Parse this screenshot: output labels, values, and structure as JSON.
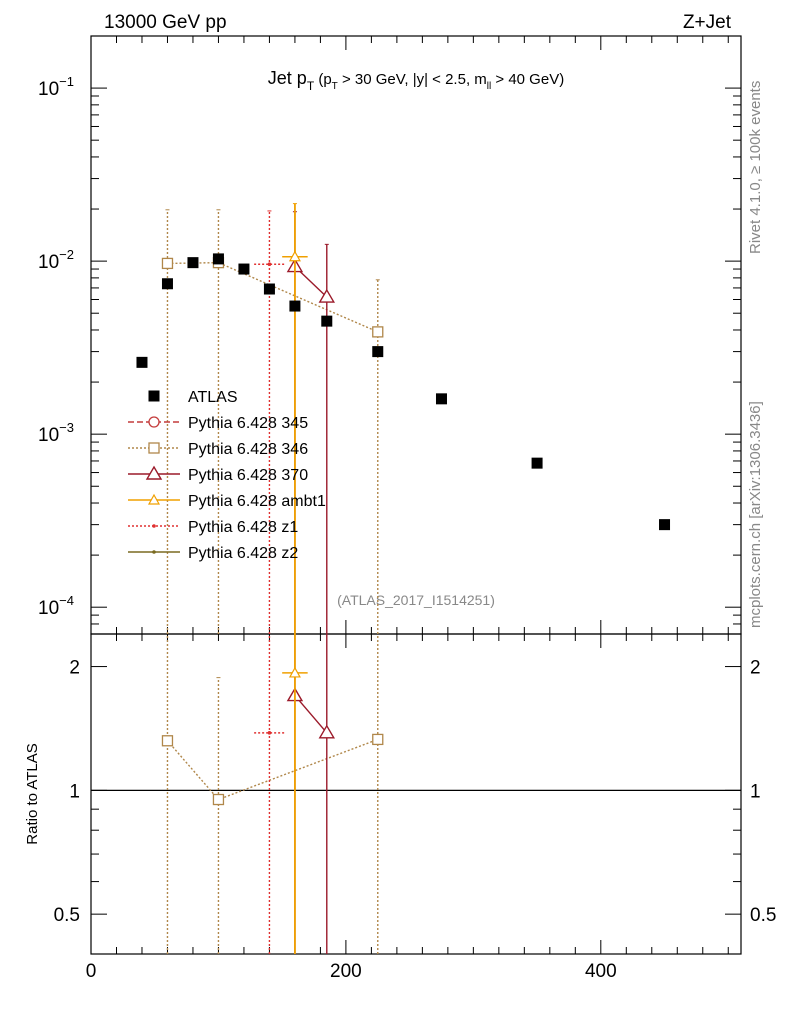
{
  "header": {
    "left": "13000 GeV pp",
    "right": "Z+Jet"
  },
  "title": {
    "main": "Jet p",
    "main_sub": "T",
    "cond_open": " (p",
    "cond_sub": "T",
    "cond_mid": " > 30 GeV, |y| < 2.5, m",
    "cond_sub2": "ll",
    "cond_end": " > 40 GeV)"
  },
  "side_labels": {
    "rivet": "Rivet 4.1.0, ≥ 100k events",
    "mcplots": "mcplots.cern.ch [arXiv:1306.3436]"
  },
  "watermark": "(ATLAS_2017_I1514251)",
  "ratio_ylabel": "Ratio to ATLAS",
  "colors": {
    "data": "#000000",
    "p345": "#c43c3c",
    "p346": "#b0874a",
    "p370": "#9b1a2a",
    "ambt1": "#f0a000",
    "z1": "#e03030",
    "z2": "#7a6a20"
  },
  "chart_data": {
    "type": "scatter",
    "main": {
      "yscale": "log",
      "ylim": [
        7e-05,
        0.2
      ],
      "xlim": [
        0,
        510
      ],
      "yticks_major": [
        {
          "value": 0.1,
          "base": "10",
          "exp": "−1"
        },
        {
          "value": 0.01,
          "base": "10",
          "exp": "−2"
        },
        {
          "value": 0.001,
          "base": "10",
          "exp": "−3"
        },
        {
          "value": 0.0001,
          "base": "10",
          "exp": "−4"
        }
      ]
    },
    "ratio": {
      "yscale": "log",
      "ylim": [
        0.4,
        2.4
      ],
      "ytick_labels": [
        {
          "value": 0.5,
          "label": "0.5"
        },
        {
          "value": 1,
          "label": "1"
        },
        {
          "value": 2,
          "label": "2"
        }
      ],
      "reference": 1
    },
    "xticks": [
      {
        "value": 0,
        "label": "0"
      },
      {
        "value": 200,
        "label": "200"
      },
      {
        "value": 400,
        "label": "400"
      }
    ],
    "legend": [
      {
        "key": "data",
        "label": "ATLAS",
        "marker": "square-filled",
        "line": "none"
      },
      {
        "key": "p345",
        "label": "Pythia 6.428 345",
        "marker": "circle-open",
        "line": "dashed"
      },
      {
        "key": "p346",
        "label": "Pythia 6.428 346",
        "marker": "square-open",
        "line": "dotted"
      },
      {
        "key": "p370",
        "label": "Pythia 6.428 370",
        "marker": "triangle-open",
        "line": "solid"
      },
      {
        "key": "ambt1",
        "label": "Pythia 6.428 ambt1",
        "marker": "triangle-small",
        "line": "solid"
      },
      {
        "key": "z1",
        "label": "Pythia 6.428 z1",
        "marker": "dot",
        "line": "dotted"
      },
      {
        "key": "z2",
        "label": "Pythia 6.428 z2",
        "marker": "dot",
        "line": "solid"
      }
    ],
    "series": [
      {
        "key": "data",
        "name": "ATLAS",
        "points": [
          {
            "x": 40,
            "y": 0.0026
          },
          {
            "x": 60,
            "y": 0.0074
          },
          {
            "x": 80,
            "y": 0.0098
          },
          {
            "x": 100,
            "y": 0.0103
          },
          {
            "x": 120,
            "y": 0.009
          },
          {
            "x": 140,
            "y": 0.0069
          },
          {
            "x": 160,
            "y": 0.0055
          },
          {
            "x": 185,
            "y": 0.0045
          },
          {
            "x": 225,
            "y": 0.003
          },
          {
            "x": 275,
            "y": 0.0016
          },
          {
            "x": 350,
            "y": 0.00068
          },
          {
            "x": 450,
            "y": 0.0003
          }
        ]
      },
      {
        "key": "p346",
        "name": "Pythia 6.428 346",
        "points": [
          {
            "x": 60,
            "y": 0.0097,
            "ylo": 1e-05,
            "yhi": 0.0198,
            "r": 1.32,
            "rlo": 0.01,
            "rhi": 10
          },
          {
            "x": 100,
            "y": 0.0098,
            "ylo": 1e-05,
            "yhi": 0.0198,
            "r": 0.95,
            "rlo": 0.01,
            "rhi": 1.88
          },
          {
            "x": 225,
            "y": 0.0039,
            "ylo": 1e-05,
            "yhi": 0.0078,
            "r": 1.33,
            "rlo": 0.01,
            "rhi": 10
          }
        ]
      },
      {
        "key": "p370",
        "name": "Pythia 6.428 370",
        "points": [
          {
            "x": 160,
            "y": 0.0093,
            "ylo": 1e-05,
            "yhi": 0.0193,
            "r": 1.7,
            "rlo": 0.01,
            "rhi": 10
          },
          {
            "x": 185,
            "y": 0.0062,
            "ylo": 1e-05,
            "yhi": 0.0125,
            "r": 1.38,
            "rlo": 0.01,
            "rhi": 10
          }
        ]
      },
      {
        "key": "ambt1",
        "name": "Pythia 6.428 ambt1",
        "points": [
          {
            "x": 160,
            "y": 0.0106,
            "xerr": 10,
            "ylo": 1e-05,
            "yhi": 0.0215,
            "r": 1.93,
            "xerr_r": 10,
            "rlo": 0.01,
            "rhi": 10
          }
        ]
      },
      {
        "key": "z1",
        "name": "Pythia 6.428 z1",
        "points": [
          {
            "x": 140,
            "y": 0.0096,
            "xerr": 12,
            "ylo": 1e-05,
            "yhi": 0.0195,
            "r": 1.38,
            "xerr_r": 12,
            "rlo": 0.01,
            "rhi": 10
          }
        ]
      }
    ]
  }
}
